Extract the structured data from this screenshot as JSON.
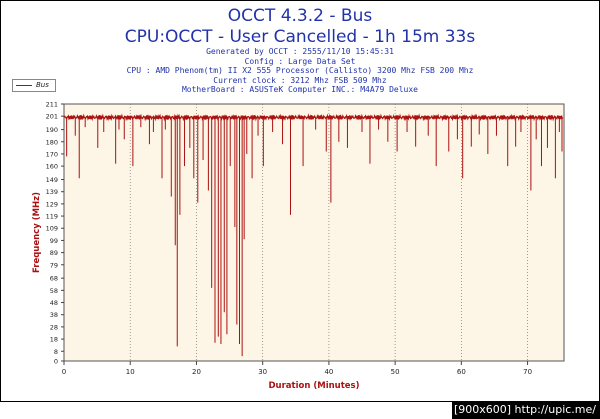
{
  "chart_data": {
    "type": "line",
    "title": "OCCT 4.3.2 - Bus",
    "subtitle": "CPU:OCCT - User Cancelled - 1h 15m 33s",
    "info_lines": [
      "Generated by OCCT : 2555/11/10 15:45:31",
      "Config : Large Data Set",
      "CPU : AMD Phenom(tm) II X2 555 Processor (Callisto) 3200 Mhz FSB 200 Mhz",
      "Current clock : 3212 Mhz FSB 509 Mhz",
      "MotherBoard : ASUSTeK Computer INC.: M4A79 Deluxe"
    ],
    "xlabel": "Duration (Minutes)",
    "ylabel": "Frequency (MHz)",
    "xlim": [
      0,
      75.5
    ],
    "ylim": [
      0,
      211
    ],
    "x_ticks": [
      0,
      10,
      20,
      30,
      40,
      50,
      60,
      70
    ],
    "y_ticks": [
      0,
      8,
      18,
      28,
      38,
      48,
      58,
      68,
      79,
      89,
      99,
      109,
      119,
      129,
      139,
      149,
      160,
      170,
      180,
      190,
      201,
      211
    ],
    "grid": "dotted",
    "legend_position": "top-left",
    "series": [
      {
        "name": "Bus",
        "color": "#aa1111",
        "baseline": 200,
        "dips": [
          [
            0.4,
            168
          ],
          [
            1.7,
            185
          ],
          [
            2.3,
            150
          ],
          [
            3.2,
            192
          ],
          [
            5.1,
            175
          ],
          [
            6.0,
            188
          ],
          [
            7.8,
            162
          ],
          [
            8.3,
            190
          ],
          [
            9.1,
            182
          ],
          [
            10.4,
            160
          ],
          [
            11.6,
            192
          ],
          [
            12.9,
            178
          ],
          [
            13.5,
            188
          ],
          [
            14.8,
            150
          ],
          [
            15.3,
            190
          ],
          [
            16.2,
            135
          ],
          [
            16.8,
            95
          ],
          [
            17.1,
            12
          ],
          [
            17.5,
            120
          ],
          [
            18.2,
            160
          ],
          [
            19.0,
            175
          ],
          [
            19.6,
            150
          ],
          [
            20.2,
            130
          ],
          [
            21.0,
            165
          ],
          [
            21.8,
            140
          ],
          [
            22.3,
            60
          ],
          [
            22.8,
            15
          ],
          [
            23.3,
            20
          ],
          [
            23.7,
            14
          ],
          [
            24.2,
            40
          ],
          [
            24.6,
            22
          ],
          [
            25.1,
            160
          ],
          [
            25.8,
            110
          ],
          [
            26.1,
            30
          ],
          [
            26.5,
            14
          ],
          [
            26.9,
            4
          ],
          [
            27.2,
            100
          ],
          [
            27.6,
            170
          ],
          [
            28.4,
            150
          ],
          [
            29.3,
            185
          ],
          [
            30.1,
            160
          ],
          [
            31.5,
            188
          ],
          [
            33.0,
            178
          ],
          [
            34.2,
            120
          ],
          [
            36.1,
            160
          ],
          [
            38.0,
            190
          ],
          [
            39.6,
            172
          ],
          [
            40.3,
            130
          ],
          [
            41.5,
            180
          ],
          [
            42.8,
            175
          ],
          [
            45.0,
            188
          ],
          [
            46.2,
            162
          ],
          [
            47.5,
            190
          ],
          [
            48.9,
            180
          ],
          [
            50.3,
            172
          ],
          [
            51.8,
            188
          ],
          [
            53.1,
            176
          ],
          [
            55.0,
            185
          ],
          [
            56.2,
            160
          ],
          [
            58.1,
            172
          ],
          [
            59.4,
            182
          ],
          [
            60.2,
            150
          ],
          [
            61.5,
            176
          ],
          [
            62.7,
            186
          ],
          [
            64.0,
            170
          ],
          [
            65.3,
            185
          ],
          [
            67.0,
            160
          ],
          [
            68.2,
            176
          ],
          [
            69.0,
            188
          ],
          [
            70.5,
            140
          ],
          [
            71.3,
            182
          ],
          [
            72.1,
            160
          ],
          [
            73.0,
            175
          ],
          [
            74.2,
            150
          ],
          [
            74.8,
            188
          ],
          [
            75.2,
            172
          ]
        ]
      }
    ]
  },
  "footer": "[900x600] http://upic.me/"
}
